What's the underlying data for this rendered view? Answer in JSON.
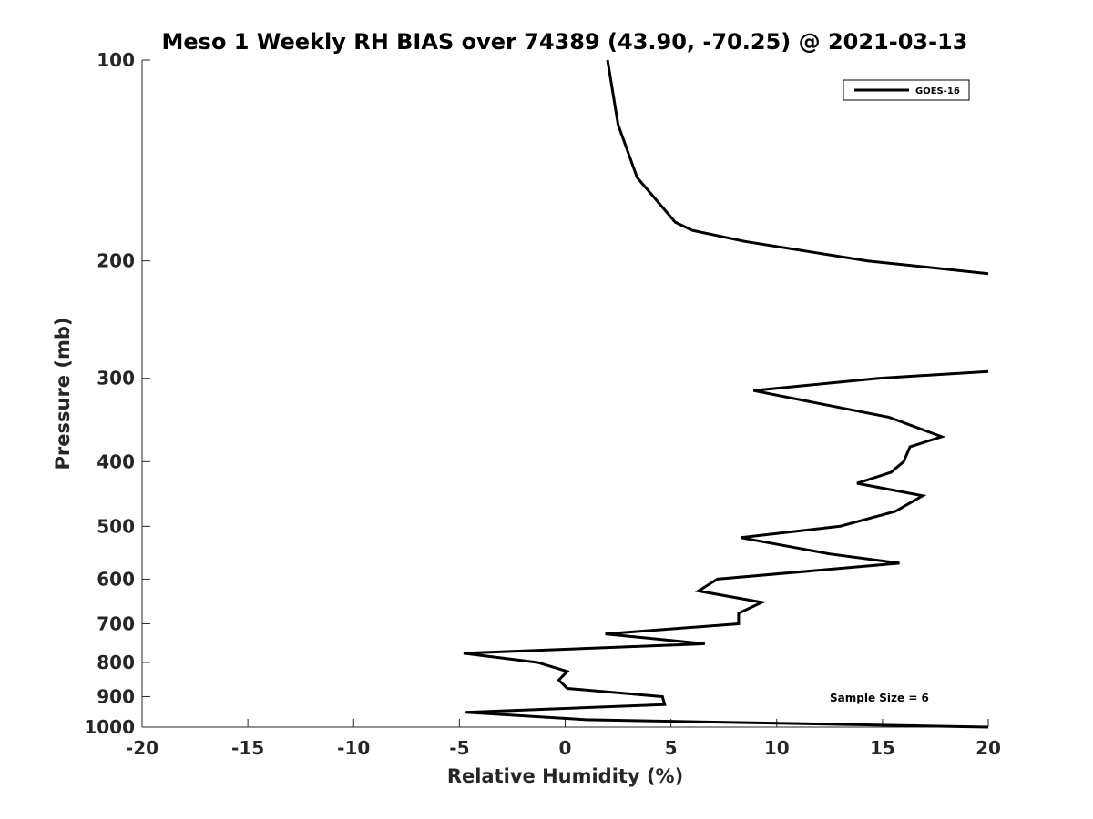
{
  "chart_data": {
    "type": "line",
    "title": "Meso 1 Weekly RH BIAS over 74389 (43.90, -70.25) @ 2021-03-13",
    "xlabel": "Relative Humidity (%)",
    "ylabel": "Pressure (mb)",
    "xlim": [
      -20,
      20
    ],
    "ylim": [
      100,
      1000
    ],
    "yscale": "log",
    "yreversed": true,
    "x_ticks": [
      "-20",
      "-15",
      "-10",
      "-5",
      "0",
      "5",
      "10",
      "15",
      "20"
    ],
    "y_ticks": [
      "100",
      "200",
      "300",
      "400",
      "500",
      "600",
      "700",
      "800",
      "900",
      "1000"
    ],
    "grid": false,
    "legend_position": "top-right",
    "annotation": "Sample Size = 6",
    "series": [
      {
        "name": "GOES-16",
        "color": "#000000",
        "segments": [
          [
            {
              "p": 100,
              "rh": 2.0
            },
            {
              "p": 125,
              "rh": 2.5
            },
            {
              "p": 150,
              "rh": 3.4
            },
            {
              "p": 175,
              "rh": 5.2
            },
            {
              "p": 180,
              "rh": 6.0
            },
            {
              "p": 187,
              "rh": 8.5
            },
            {
              "p": 200,
              "rh": 14.3
            },
            {
              "p": 209,
              "rh": 20.0
            }
          ],
          [
            {
              "p": 293,
              "rh": 20.0
            },
            {
              "p": 300,
              "rh": 14.8
            },
            {
              "p": 313,
              "rh": 8.9
            },
            {
              "p": 343,
              "rh": 15.3
            },
            {
              "p": 367,
              "rh": 17.8
            },
            {
              "p": 380,
              "rh": 16.3
            },
            {
              "p": 400,
              "rh": 16.0
            },
            {
              "p": 415,
              "rh": 15.4
            },
            {
              "p": 431,
              "rh": 13.8
            },
            {
              "p": 450,
              "rh": 16.9
            },
            {
              "p": 475,
              "rh": 15.6
            },
            {
              "p": 500,
              "rh": 13.0
            },
            {
              "p": 520,
              "rh": 8.3
            },
            {
              "p": 550,
              "rh": 12.5
            },
            {
              "p": 568,
              "rh": 15.8
            },
            {
              "p": 600,
              "rh": 7.2
            },
            {
              "p": 625,
              "rh": 6.3
            },
            {
              "p": 650,
              "rh": 9.3
            },
            {
              "p": 675,
              "rh": 8.2
            },
            {
              "p": 700,
              "rh": 8.2
            },
            {
              "p": 725,
              "rh": 1.9
            },
            {
              "p": 750,
              "rh": 6.6
            },
            {
              "p": 775,
              "rh": -4.8
            },
            {
              "p": 800,
              "rh": -1.3
            },
            {
              "p": 825,
              "rh": 0.1
            },
            {
              "p": 850,
              "rh": -0.3
            },
            {
              "p": 875,
              "rh": 0.1
            },
            {
              "p": 900,
              "rh": 4.6
            },
            {
              "p": 925,
              "rh": 4.7
            },
            {
              "p": 950,
              "rh": -4.7
            },
            {
              "p": 975,
              "rh": 1.0
            },
            {
              "p": 1000,
              "rh": 20.0
            }
          ]
        ]
      }
    ]
  }
}
